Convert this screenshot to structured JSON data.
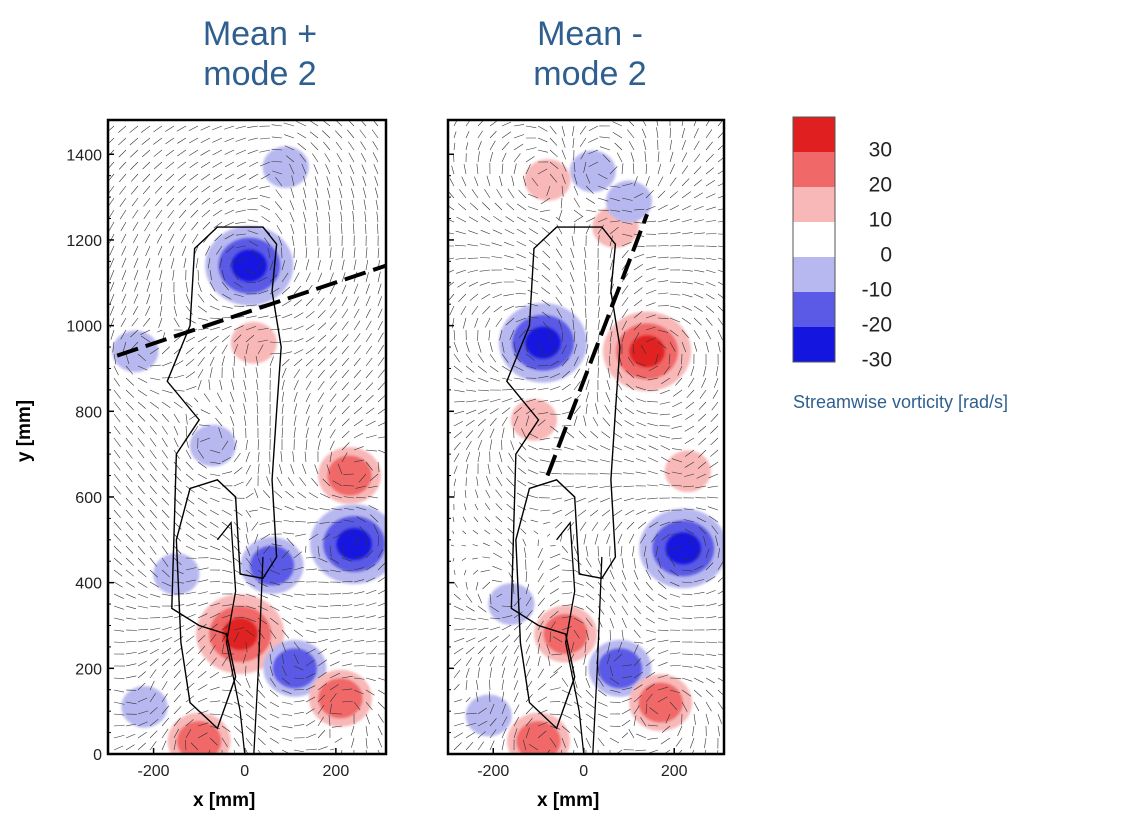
{
  "titles": {
    "left": [
      "Mean +",
      "mode 2"
    ],
    "right": [
      "Mean -",
      "mode 2"
    ]
  },
  "axis": {
    "xlabel": "x [mm]",
    "ylabel": "y [mm]",
    "yticks": [
      0,
      200,
      400,
      600,
      800,
      1000,
      1200,
      1400
    ],
    "xticks": [
      -200,
      0,
      200
    ]
  },
  "legend": {
    "title": "Streamwise vorticity [rad/s]",
    "levels": [
      "30",
      "20",
      "10",
      "0",
      "-10",
      "-20",
      "-30"
    ],
    "colors": [
      "#e02020",
      "#f06868",
      "#f8b8b8",
      "#ffffff",
      "#b8b8f0",
      "#5a5ae6",
      "#1515e0"
    ]
  },
  "chart_data": [
    {
      "type": "heatmap",
      "title": "Mean + mode 2",
      "xlabel": "x [mm]",
      "ylabel": "y [mm]",
      "xlim": [
        -300,
        310
      ],
      "ylim": [
        0,
        1480
      ],
      "vortices": [
        {
          "x": 10,
          "y": 1140,
          "vorticity": -30
        },
        {
          "x": 90,
          "y": 1370,
          "vorticity": -10
        },
        {
          "x": 20,
          "y": 960,
          "vorticity": 10
        },
        {
          "x": -240,
          "y": 940,
          "vorticity": -10
        },
        {
          "x": -70,
          "y": 720,
          "vorticity": -10
        },
        {
          "x": 230,
          "y": 650,
          "vorticity": 20
        },
        {
          "x": 240,
          "y": 490,
          "vorticity": -30
        },
        {
          "x": 60,
          "y": 440,
          "vorticity": -20
        },
        {
          "x": -150,
          "y": 420,
          "vorticity": -10
        },
        {
          "x": -10,
          "y": 280,
          "vorticity": 30
        },
        {
          "x": 110,
          "y": 200,
          "vorticity": -20
        },
        {
          "x": 210,
          "y": 130,
          "vorticity": 20
        },
        {
          "x": -100,
          "y": 30,
          "vorticity": 20
        },
        {
          "x": -220,
          "y": 110,
          "vorticity": -10
        }
      ],
      "dashed_line": {
        "from": [
          -280,
          930
        ],
        "to": [
          310,
          1140
        ]
      }
    },
    {
      "type": "heatmap",
      "title": "Mean - mode 2",
      "xlabel": "x [mm]",
      "ylabel": "y [mm]",
      "xlim": [
        -300,
        310
      ],
      "ylim": [
        0,
        1480
      ],
      "vortices": [
        {
          "x": -90,
          "y": 960,
          "vorticity": -30
        },
        {
          "x": 140,
          "y": 940,
          "vorticity": 30
        },
        {
          "x": -110,
          "y": 780,
          "vorticity": 10
        },
        {
          "x": 70,
          "y": 1230,
          "vorticity": 10
        },
        {
          "x": 100,
          "y": 1290,
          "vorticity": -10
        },
        {
          "x": 20,
          "y": 1360,
          "vorticity": -10
        },
        {
          "x": -80,
          "y": 1340,
          "vorticity": 10
        },
        {
          "x": 230,
          "y": 660,
          "vorticity": 10
        },
        {
          "x": 220,
          "y": 480,
          "vorticity": -30
        },
        {
          "x": -40,
          "y": 280,
          "vorticity": 20
        },
        {
          "x": 80,
          "y": 200,
          "vorticity": -20
        },
        {
          "x": 170,
          "y": 120,
          "vorticity": 20
        },
        {
          "x": -100,
          "y": 30,
          "vorticity": 20
        },
        {
          "x": -210,
          "y": 90,
          "vorticity": -10
        },
        {
          "x": -160,
          "y": 350,
          "vorticity": -10
        }
      ],
      "dashed_line": {
        "from": [
          -80,
          650
        ],
        "to": [
          140,
          1260
        ]
      }
    }
  ]
}
